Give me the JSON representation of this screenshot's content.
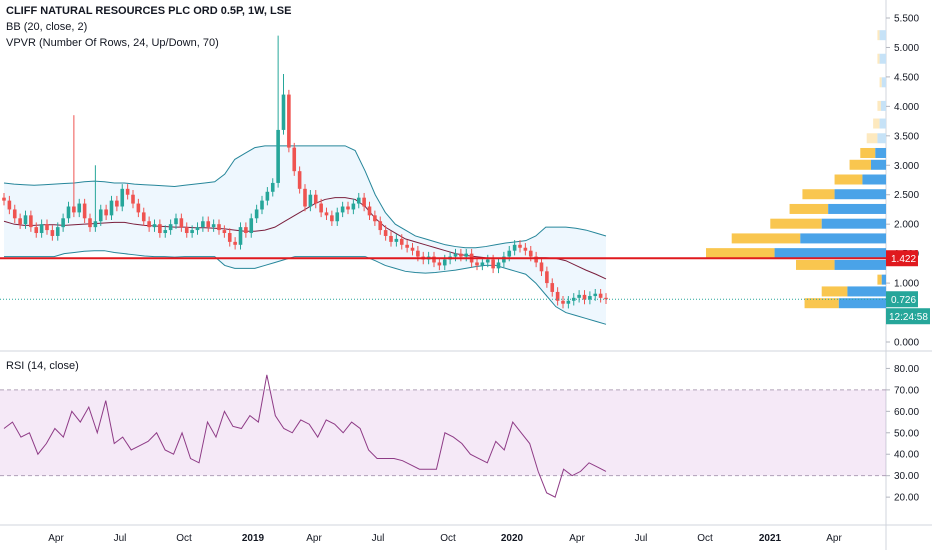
{
  "legend": {
    "title": "CLIFF NATURAL RESOURCES PLC ORD 0.5P, 1W, LSE",
    "bb": "BB (20, close, 2)",
    "vpvr": "VPVR (Number Of Rows, 24, Up/Down, 70)",
    "rsi": "RSI (14, close)"
  },
  "tags": {
    "hline_value": "1.422",
    "last_price": "0.726",
    "countdown": "12:24:58"
  },
  "chart_data": [
    {
      "type": "candlestick",
      "name": "price",
      "y_ticks": [
        "5.500",
        "5.000",
        "4.500",
        "4.000",
        "3.500",
        "3.000",
        "2.500",
        "2.000",
        "1.500",
        "1.000",
        "0.500",
        "0.000"
      ],
      "ylim": [
        0,
        5.5
      ],
      "x_labels": [
        {
          "text": "Apr",
          "bold": false
        },
        {
          "text": "Jul",
          "bold": false
        },
        {
          "text": "Oct",
          "bold": false
        },
        {
          "text": "2019",
          "bold": true
        },
        {
          "text": "Apr",
          "bold": false
        },
        {
          "text": "Jul",
          "bold": false
        },
        {
          "text": "Oct",
          "bold": false
        },
        {
          "text": "2020",
          "bold": true
        },
        {
          "text": "Apr",
          "bold": false
        },
        {
          "text": "Jul",
          "bold": false
        },
        {
          "text": "Oct",
          "bold": false
        },
        {
          "text": "2021",
          "bold": true
        },
        {
          "text": "Apr",
          "bold": false
        }
      ],
      "closes": [
        2.4,
        2.25,
        2.1,
        2.0,
        2.15,
        1.95,
        1.85,
        2.0,
        1.9,
        1.8,
        1.95,
        2.1,
        2.3,
        2.2,
        2.35,
        2.1,
        1.95,
        2.05,
        2.25,
        2.15,
        2.4,
        2.3,
        2.6,
        2.5,
        2.35,
        2.2,
        2.05,
        1.95,
        2.0,
        1.85,
        1.9,
        2.0,
        2.1,
        1.95,
        1.85,
        1.9,
        1.95,
        2.05,
        1.95,
        2.0,
        1.9,
        1.85,
        1.7,
        1.65,
        1.95,
        1.85,
        2.1,
        2.25,
        2.4,
        2.55,
        2.7,
        3.6,
        4.2,
        3.3,
        2.9,
        2.6,
        2.3,
        2.5,
        2.35,
        2.2,
        2.15,
        2.05,
        2.2,
        2.3,
        2.25,
        2.35,
        2.45,
        2.3,
        2.15,
        2.05,
        1.9,
        1.8,
        1.7,
        1.75,
        1.65,
        1.6,
        1.55,
        1.45,
        1.4,
        1.45,
        1.35,
        1.3,
        1.4,
        1.45,
        1.5,
        1.45,
        1.5,
        1.35,
        1.3,
        1.35,
        1.4,
        1.25,
        1.35,
        1.45,
        1.55,
        1.65,
        1.6,
        1.55,
        1.45,
        1.35,
        1.2,
        1.0,
        0.85,
        0.7,
        0.65,
        0.7,
        0.75,
        0.8,
        0.72,
        0.78,
        0.82,
        0.75,
        0.726
      ],
      "bb_mid": [
        2.05,
        2.0,
        1.98,
        1.98,
        1.99,
        1.99,
        1.98,
        1.99,
        2.0,
        2.01,
        2.02,
        2.03,
        2.03,
        2.0,
        1.98,
        1.97,
        1.96,
        1.95,
        1.95,
        1.94,
        1.94,
        1.93,
        1.92,
        1.9,
        1.88,
        1.88,
        1.9,
        1.95,
        2.05,
        2.15,
        2.25,
        2.35,
        2.42,
        2.45,
        2.45,
        2.42,
        2.3,
        2.1,
        1.95,
        1.85,
        1.75,
        1.7,
        1.65,
        1.6,
        1.55,
        1.5,
        1.47,
        1.45,
        1.43,
        1.42,
        1.42,
        1.42,
        1.42,
        1.43,
        1.43,
        1.42,
        1.38,
        1.3,
        1.22,
        1.15,
        1.07
      ],
      "bb_up": [
        2.7,
        2.68,
        2.67,
        2.66,
        2.67,
        2.68,
        2.69,
        2.7,
        2.72,
        2.73,
        2.72,
        2.7,
        2.7,
        2.68,
        2.67,
        2.66,
        2.65,
        2.64,
        2.66,
        2.68,
        2.7,
        2.72,
        2.85,
        3.1,
        3.2,
        3.3,
        3.33,
        3.33,
        3.33,
        3.33,
        3.33,
        3.33,
        3.33,
        3.33,
        3.33,
        3.25,
        2.9,
        2.5,
        2.2,
        2.0,
        1.9,
        1.8,
        1.75,
        1.7,
        1.65,
        1.62,
        1.6,
        1.6,
        1.62,
        1.65,
        1.68,
        1.7,
        1.72,
        1.8,
        1.95,
        1.95,
        1.95,
        1.93,
        1.9,
        1.85,
        1.8
      ],
      "bb_lo": [
        1.45,
        1.45,
        1.45,
        1.45,
        1.45,
        1.45,
        1.5,
        1.52,
        1.54,
        1.55,
        1.55,
        1.52,
        1.5,
        1.48,
        1.46,
        1.45,
        1.45,
        1.44,
        1.45,
        1.45,
        1.45,
        1.45,
        1.3,
        1.25,
        1.25,
        1.25,
        1.3,
        1.35,
        1.4,
        1.45,
        1.45,
        1.45,
        1.45,
        1.45,
        1.45,
        1.45,
        1.45,
        1.38,
        1.3,
        1.25,
        1.2,
        1.18,
        1.17,
        1.18,
        1.2,
        1.22,
        1.25,
        1.28,
        1.3,
        1.3,
        1.25,
        1.2,
        1.15,
        1.0,
        0.8,
        0.6,
        0.5,
        0.45,
        0.4,
        0.35,
        0.3
      ],
      "vpvr_rows": [
        {
          "price": 5.2,
          "up": 0.05,
          "down": 0.15
        },
        {
          "price": 4.8,
          "up": 0.05,
          "down": 0.15
        },
        {
          "price": 4.4,
          "up": 0.05,
          "down": 0.1
        },
        {
          "price": 4.0,
          "up": 0.08,
          "down": 0.12
        },
        {
          "price": 3.7,
          "up": 0.15,
          "down": 0.15
        },
        {
          "price": 3.45,
          "up": 0.25,
          "down": 0.2
        },
        {
          "price": 3.2,
          "up": 0.35,
          "down": 0.25
        },
        {
          "price": 3.0,
          "up": 0.5,
          "down": 0.35
        },
        {
          "price": 2.75,
          "up": 0.65,
          "down": 0.55
        },
        {
          "price": 2.5,
          "up": 0.75,
          "down": 1.2
        },
        {
          "price": 2.25,
          "up": 0.9,
          "down": 1.35
        },
        {
          "price": 2.0,
          "up": 1.2,
          "down": 1.5
        },
        {
          "price": 1.75,
          "up": 1.6,
          "down": 2.0
        },
        {
          "price": 1.5,
          "up": 1.6,
          "down": 2.6
        },
        {
          "price": 1.3,
          "up": 0.9,
          "down": 1.2
        },
        {
          "price": 1.05,
          "up": 0.1,
          "down": 0.1
        },
        {
          "price": 0.85,
          "up": 0.6,
          "down": 0.9
        },
        {
          "price": 0.65,
          "up": 0.8,
          "down": 1.1
        }
      ],
      "hline": 1.422,
      "last_price": 0.726
    },
    {
      "type": "line",
      "name": "RSI",
      "y_ticks": [
        "80.00",
        "70.00",
        "60.00",
        "50.00",
        "40.00",
        "30.00",
        "20.00"
      ],
      "ylim": [
        14,
        83
      ],
      "band": [
        30,
        70
      ],
      "values": [
        52,
        55,
        48,
        50,
        40,
        45,
        52,
        48,
        60,
        55,
        62,
        50,
        65,
        45,
        48,
        42,
        44,
        46,
        50,
        42,
        40,
        50,
        38,
        36,
        55,
        48,
        60,
        53,
        52,
        58,
        55,
        77,
        58,
        52,
        50,
        56,
        54,
        48,
        56,
        54,
        50,
        55,
        52,
        42,
        38,
        38,
        38,
        37,
        35,
        33,
        33,
        33,
        50,
        48,
        45,
        40,
        38,
        36,
        46,
        42,
        55,
        50,
        45,
        32,
        22,
        20,
        33,
        30,
        32,
        36,
        34,
        32
      ]
    }
  ]
}
